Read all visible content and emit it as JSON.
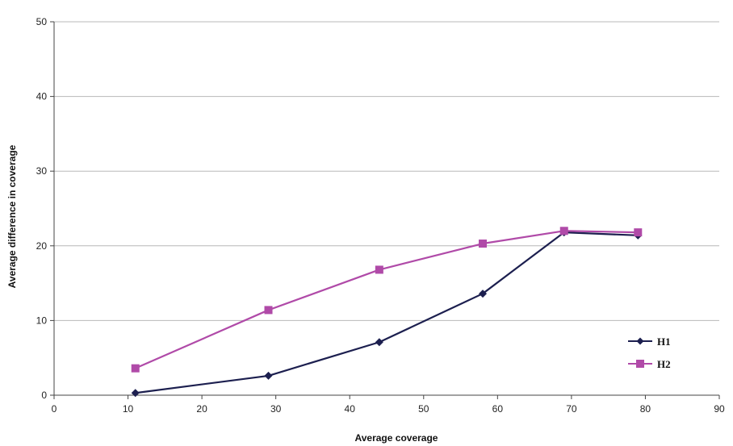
{
  "chart_data": {
    "type": "line",
    "title": "",
    "xlabel": "Average coverage",
    "ylabel": "Average difference in coverage",
    "xlim": [
      0,
      90
    ],
    "ylim": [
      0,
      50
    ],
    "x_ticks": [
      0,
      10,
      20,
      30,
      40,
      50,
      60,
      70,
      80,
      90
    ],
    "y_ticks": [
      0,
      10,
      20,
      30,
      40,
      50
    ],
    "grid": "horizontal",
    "legend_position": "bottom-right",
    "series": [
      {
        "name": "H1",
        "color": "#1c1f4f",
        "marker": "diamond",
        "x": [
          11,
          29,
          44,
          58,
          69,
          79
        ],
        "y": [
          0.3,
          2.6,
          7.1,
          13.6,
          21.8,
          21.4
        ]
      },
      {
        "name": "H2",
        "color": "#b04aa8",
        "marker": "square",
        "x": [
          11,
          29,
          44,
          58,
          69,
          79
        ],
        "y": [
          3.6,
          11.4,
          16.8,
          20.3,
          22.0,
          21.8
        ]
      }
    ]
  }
}
